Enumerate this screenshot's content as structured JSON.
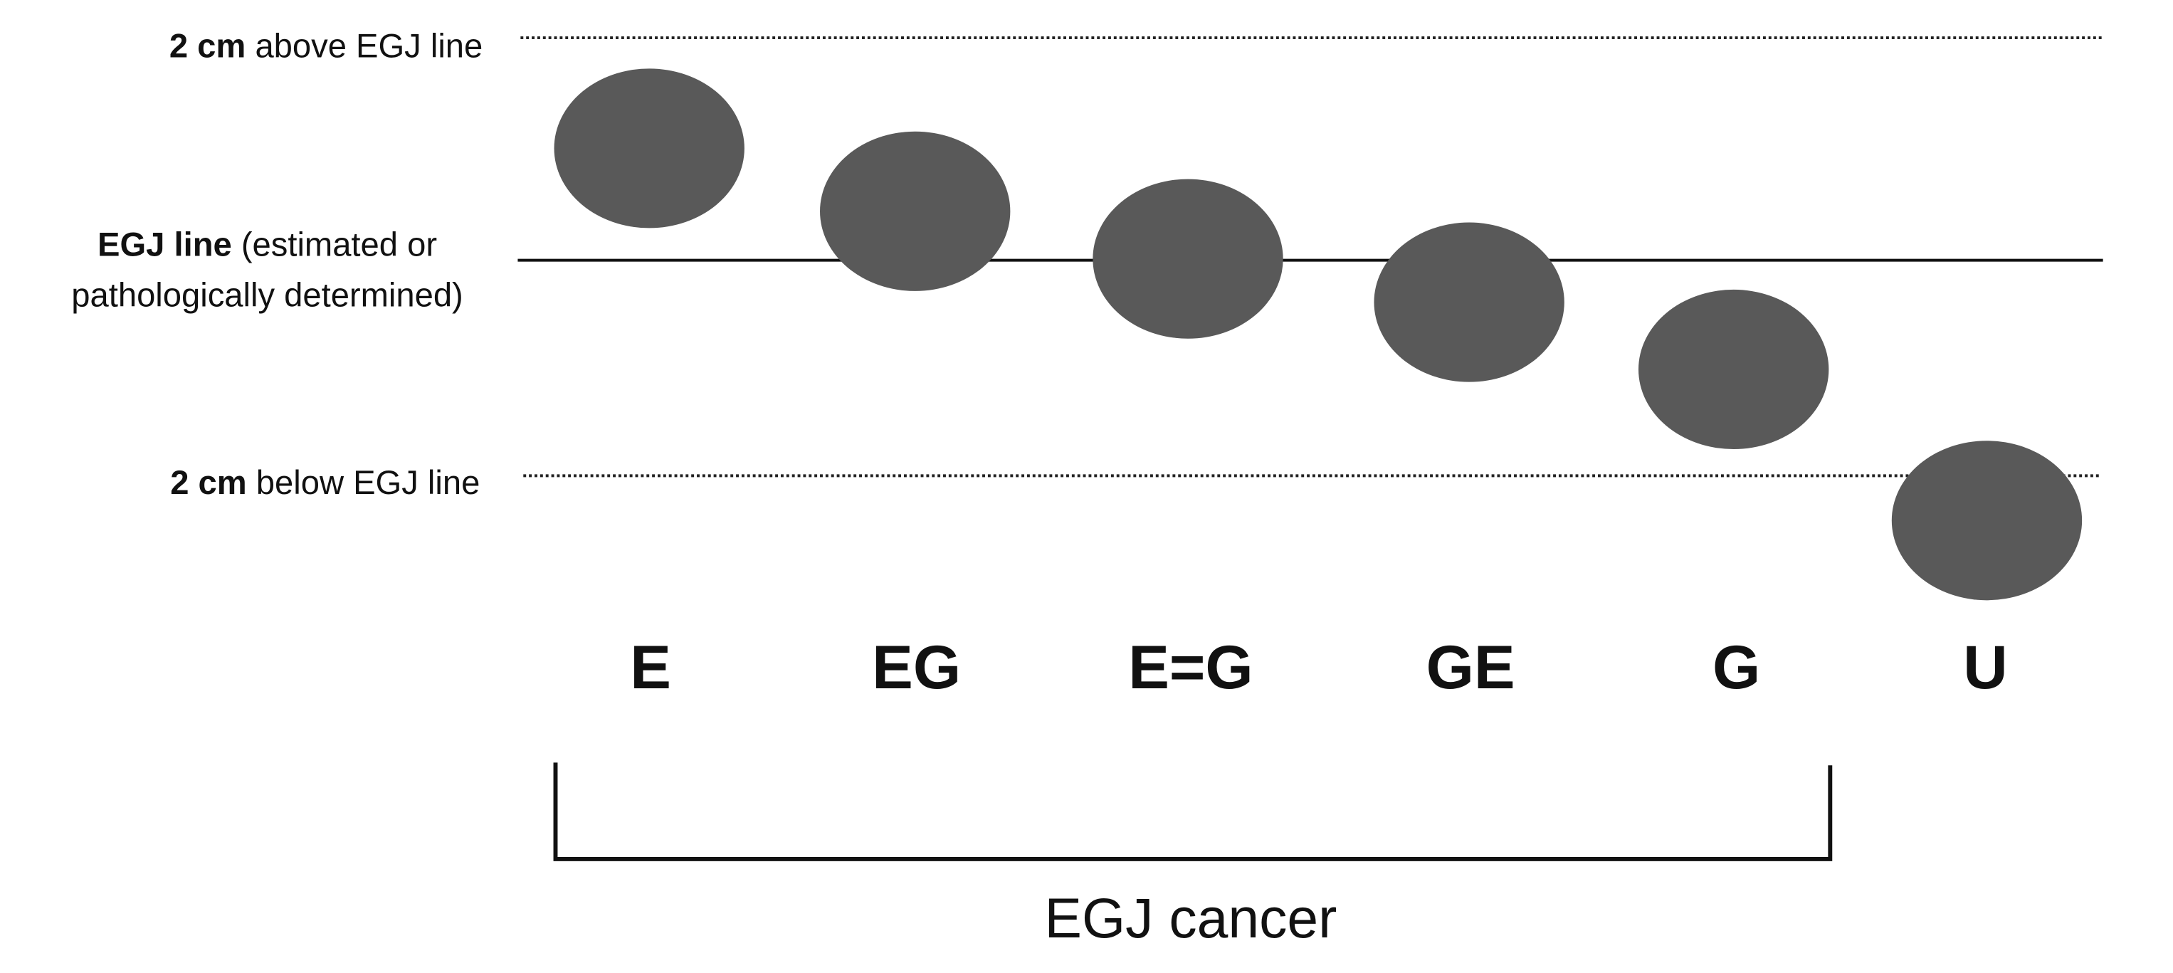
{
  "levels": [
    {
      "bold": "2 cm",
      "text": "above EGJ line"
    },
    {
      "bold": "EGJ line",
      "text": "(estimated or",
      "text2": "pathologically determined)"
    },
    {
      "bold": "2 cm",
      "text": "below EGJ line"
    }
  ],
  "tumors": [
    {
      "label": "E"
    },
    {
      "label": "EG"
    },
    {
      "label": "E=G"
    },
    {
      "label": "GE"
    },
    {
      "label": "G"
    },
    {
      "label": "U"
    }
  ],
  "bracket": {
    "label": "EGJ cancer"
  }
}
